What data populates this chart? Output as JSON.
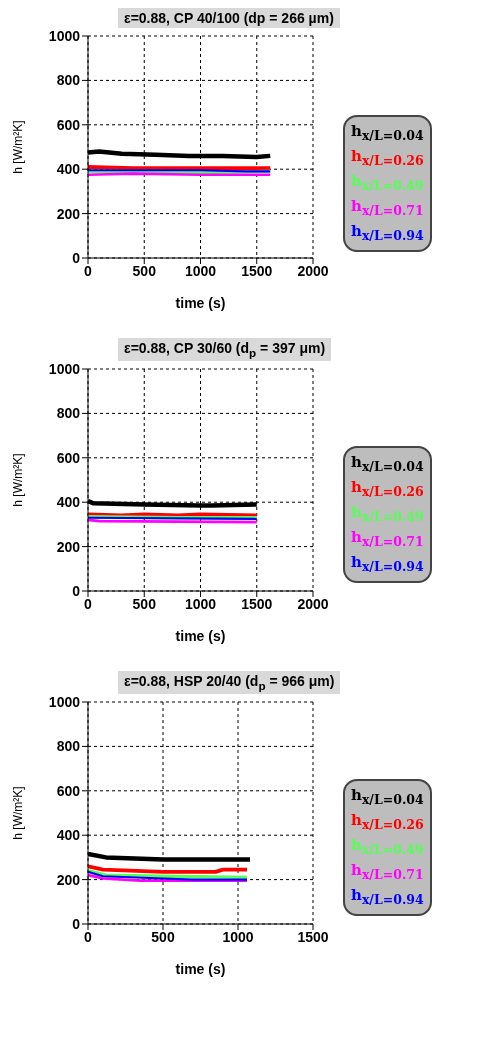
{
  "chart_data": [
    {
      "type": "line",
      "title": "ε=0.88, CP 40/100 (dp = 266 µm)",
      "xlabel": "time (s)",
      "ylabel": "h [W/m²K]",
      "xlim": [
        0,
        2000
      ],
      "xticks": [
        0,
        500,
        1000,
        1500,
        2000
      ],
      "ylim": [
        0,
        1000
      ],
      "yticks": [
        0,
        200,
        400,
        600,
        800,
        1000
      ],
      "grid": true,
      "legend": "right",
      "marker": "none",
      "line_style": "solid",
      "series": [
        {
          "name": "h$_{x/L=0.04}$",
          "color": "#000000",
          "x": [
            0,
            100,
            300,
            600,
            900,
            1200,
            1500,
            1620
          ],
          "values": [
            475,
            480,
            470,
            465,
            460,
            460,
            455,
            460
          ]
        },
        {
          "name": "h$_{x/L=0.26}$",
          "color": "#ff0000",
          "x": [
            0,
            400,
            800,
            1200,
            1620
          ],
          "values": [
            410,
            405,
            405,
            405,
            405
          ]
        },
        {
          "name": "h$_{x/L=0.49}$",
          "color": "#55ff55",
          "x": [
            0,
            600,
            1000,
            1620
          ],
          "values": [
            390,
            390,
            385,
            390
          ]
        },
        {
          "name": "h$_{x/L=0.71}$",
          "color": "#ff00ff",
          "x": [
            0,
            400,
            1000,
            1620
          ],
          "values": [
            375,
            380,
            375,
            375
          ]
        },
        {
          "name": "h$_{x/L=0.94}$",
          "color": "#0000ff",
          "x": [
            0,
            500,
            1000,
            1400,
            1620
          ],
          "values": [
            395,
            395,
            395,
            390,
            390
          ]
        }
      ]
    },
    {
      "type": "line",
      "title": "ε=0.88, CP 30/60 (d$_{p}$ = 397 μm)",
      "xlabel": "time (s)",
      "ylabel": "h [W/m²K]",
      "xlim": [
        0,
        2000
      ],
      "xticks": [
        0,
        500,
        1000,
        1500,
        2000
      ],
      "ylim": [
        0,
        1000
      ],
      "yticks": [
        0,
        200,
        400,
        600,
        800,
        1000
      ],
      "grid": true,
      "legend": "right",
      "marker": "none",
      "line_style": "solid",
      "series": [
        {
          "name": "h$_{x/L=0.04}$",
          "color": "#000000",
          "x": [
            0,
            50,
            500,
            1000,
            1100,
            1500
          ],
          "values": [
            405,
            395,
            390,
            385,
            385,
            390
          ]
        },
        {
          "name": "h$_{x/L=0.26}$",
          "color": "#ff0000",
          "x": [
            0,
            300,
            500,
            800,
            1000,
            1500
          ],
          "values": [
            345,
            340,
            345,
            340,
            345,
            340
          ]
        },
        {
          "name": "h$_{x/L=0.49}$",
          "color": "#55ff55",
          "x": [
            0,
            800,
            1500
          ],
          "values": [
            335,
            330,
            330
          ]
        },
        {
          "name": "h$_{x/L=0.71}$",
          "color": "#ff00ff",
          "x": [
            0,
            100,
            1500
          ],
          "values": [
            320,
            315,
            310
          ]
        },
        {
          "name": "h$_{x/L=0.94}$",
          "color": "#0000ff",
          "x": [
            0,
            1500
          ],
          "values": [
            330,
            325
          ]
        }
      ]
    },
    {
      "type": "line",
      "title": "ε=0.88, HSP 20/40 (d$_{p}$ = 966 μm)",
      "xlabel": "time (s)",
      "ylabel": "h [W/m²K]",
      "xlim": [
        0,
        1500
      ],
      "xticks": [
        0,
        500,
        1000,
        1500
      ],
      "ylim": [
        0,
        1000
      ],
      "yticks": [
        0,
        200,
        400,
        600,
        800,
        1000
      ],
      "grid": true,
      "legend": "right",
      "marker": "none",
      "line_style": "solid",
      "series": [
        {
          "name": "h$_{x/L=0.04}$",
          "color": "#000000",
          "x": [
            0,
            120,
            500,
            1080
          ],
          "values": [
            315,
            300,
            290,
            290
          ]
        },
        {
          "name": "h$_{x/L=0.26}$",
          "color": "#ff0000",
          "x": [
            0,
            100,
            500,
            850,
            900,
            1060
          ],
          "values": [
            260,
            245,
            235,
            235,
            245,
            245
          ]
        },
        {
          "name": "h$_{x/L=0.49}$",
          "color": "#55ff55",
          "x": [
            0,
            120,
            500,
            1060
          ],
          "values": [
            240,
            220,
            215,
            210
          ]
        },
        {
          "name": "h$_{x/L=0.71}$",
          "color": "#ff00ff",
          "x": [
            0,
            100,
            350,
            1060
          ],
          "values": [
            220,
            205,
            195,
            195
          ]
        },
        {
          "name": "h$_{x/L=0.94}$",
          "color": "#0000ff",
          "x": [
            0,
            100,
            500,
            700,
            1060
          ],
          "values": [
            235,
            215,
            205,
            200,
            200
          ]
        }
      ]
    }
  ]
}
